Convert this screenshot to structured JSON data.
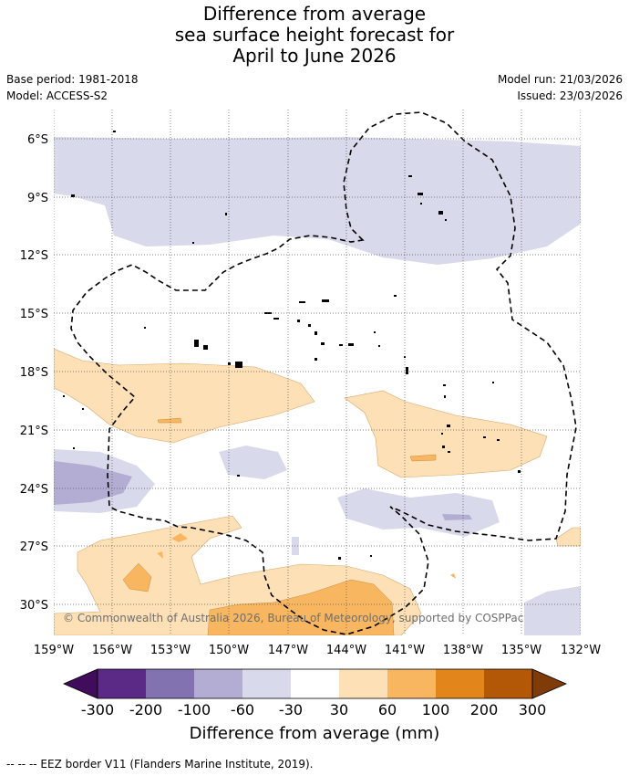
{
  "header": {
    "title_line1": "Difference from average",
    "title_line2": "sea surface height forecast for",
    "title_line3": "April to June 2026",
    "base_period": "Base period: 1981-2018",
    "model": "Model: ACCESS-S2",
    "model_run": "Model run: 21/03/2026",
    "issued": "Issued: 23/03/2026"
  },
  "map": {
    "lat_labels": [
      "6°S",
      "9°S",
      "12°S",
      "15°S",
      "18°S",
      "21°S",
      "24°S",
      "27°S",
      "30°S"
    ],
    "lon_labels": [
      "159°W",
      "156°W",
      "153°W",
      "150°W",
      "147°W",
      "144°W",
      "141°W",
      "138°W",
      "135°W",
      "132°W"
    ],
    "lat_range": [
      -32.5,
      -4.5
    ],
    "lon_range": [
      -159,
      -132
    ],
    "copyright": "© Commonwealth of Australia 2026, Bureau of Meteorology, supported by COSPPac"
  },
  "colorbar": {
    "tick_labels": [
      "-300",
      "-200",
      "-100",
      "-60",
      "-30",
      "30",
      "60",
      "100",
      "200",
      "300"
    ],
    "colors": [
      "#3f0d5c",
      "#5b2a86",
      "#8273b0",
      "#b3acd3",
      "#d8d9ea",
      "#ffffff",
      "#fde0b6",
      "#f8b660",
      "#e2861c",
      "#b25807",
      "#7f3b08"
    ],
    "title": "Difference from average (mm)"
  },
  "footer": {
    "legend_text": "--  --  -- EEZ border V11 (Flanders Marine Institute, 2019)."
  }
}
